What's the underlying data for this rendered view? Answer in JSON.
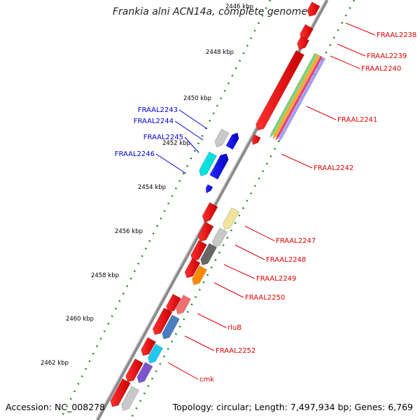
{
  "diagram": {
    "title": "Frankia alni ACN14a, complete genome",
    "accession": "Accession: NC_008278",
    "topology": "Topology: circular; Length: 7,497,934 bp; Genes: 6,769",
    "ruler_labels": [
      "2446 kbp",
      "2448 kbp",
      "2450 kbp",
      "2452 kbp",
      "2454 kbp",
      "2456 kbp",
      "2458 kbp",
      "2460 kbp",
      "2462 kbp"
    ],
    "genes_forward": [
      "FRAAL2243",
      "FRAAL2244",
      "FRAAL2245",
      "FRAAL2246"
    ],
    "genes_reverse": [
      "FRAAL2238",
      "FRAAL2239",
      "FRAAL2240",
      "FRAAL2241",
      "FRAAL2242",
      "FRAAL2247",
      "FRAAL2248",
      "FRAAL2249",
      "FRAAL2250",
      "rluB",
      "FRAAL2252",
      "cmk"
    ],
    "colors": {
      "forward_label": "#0000cc",
      "reverse_label": "#e00000",
      "backbone": "#888888",
      "ruler_dots": "#1a8a1a",
      "forward_gene": "#0000ee",
      "reverse_gene": "#ee0000"
    }
  }
}
